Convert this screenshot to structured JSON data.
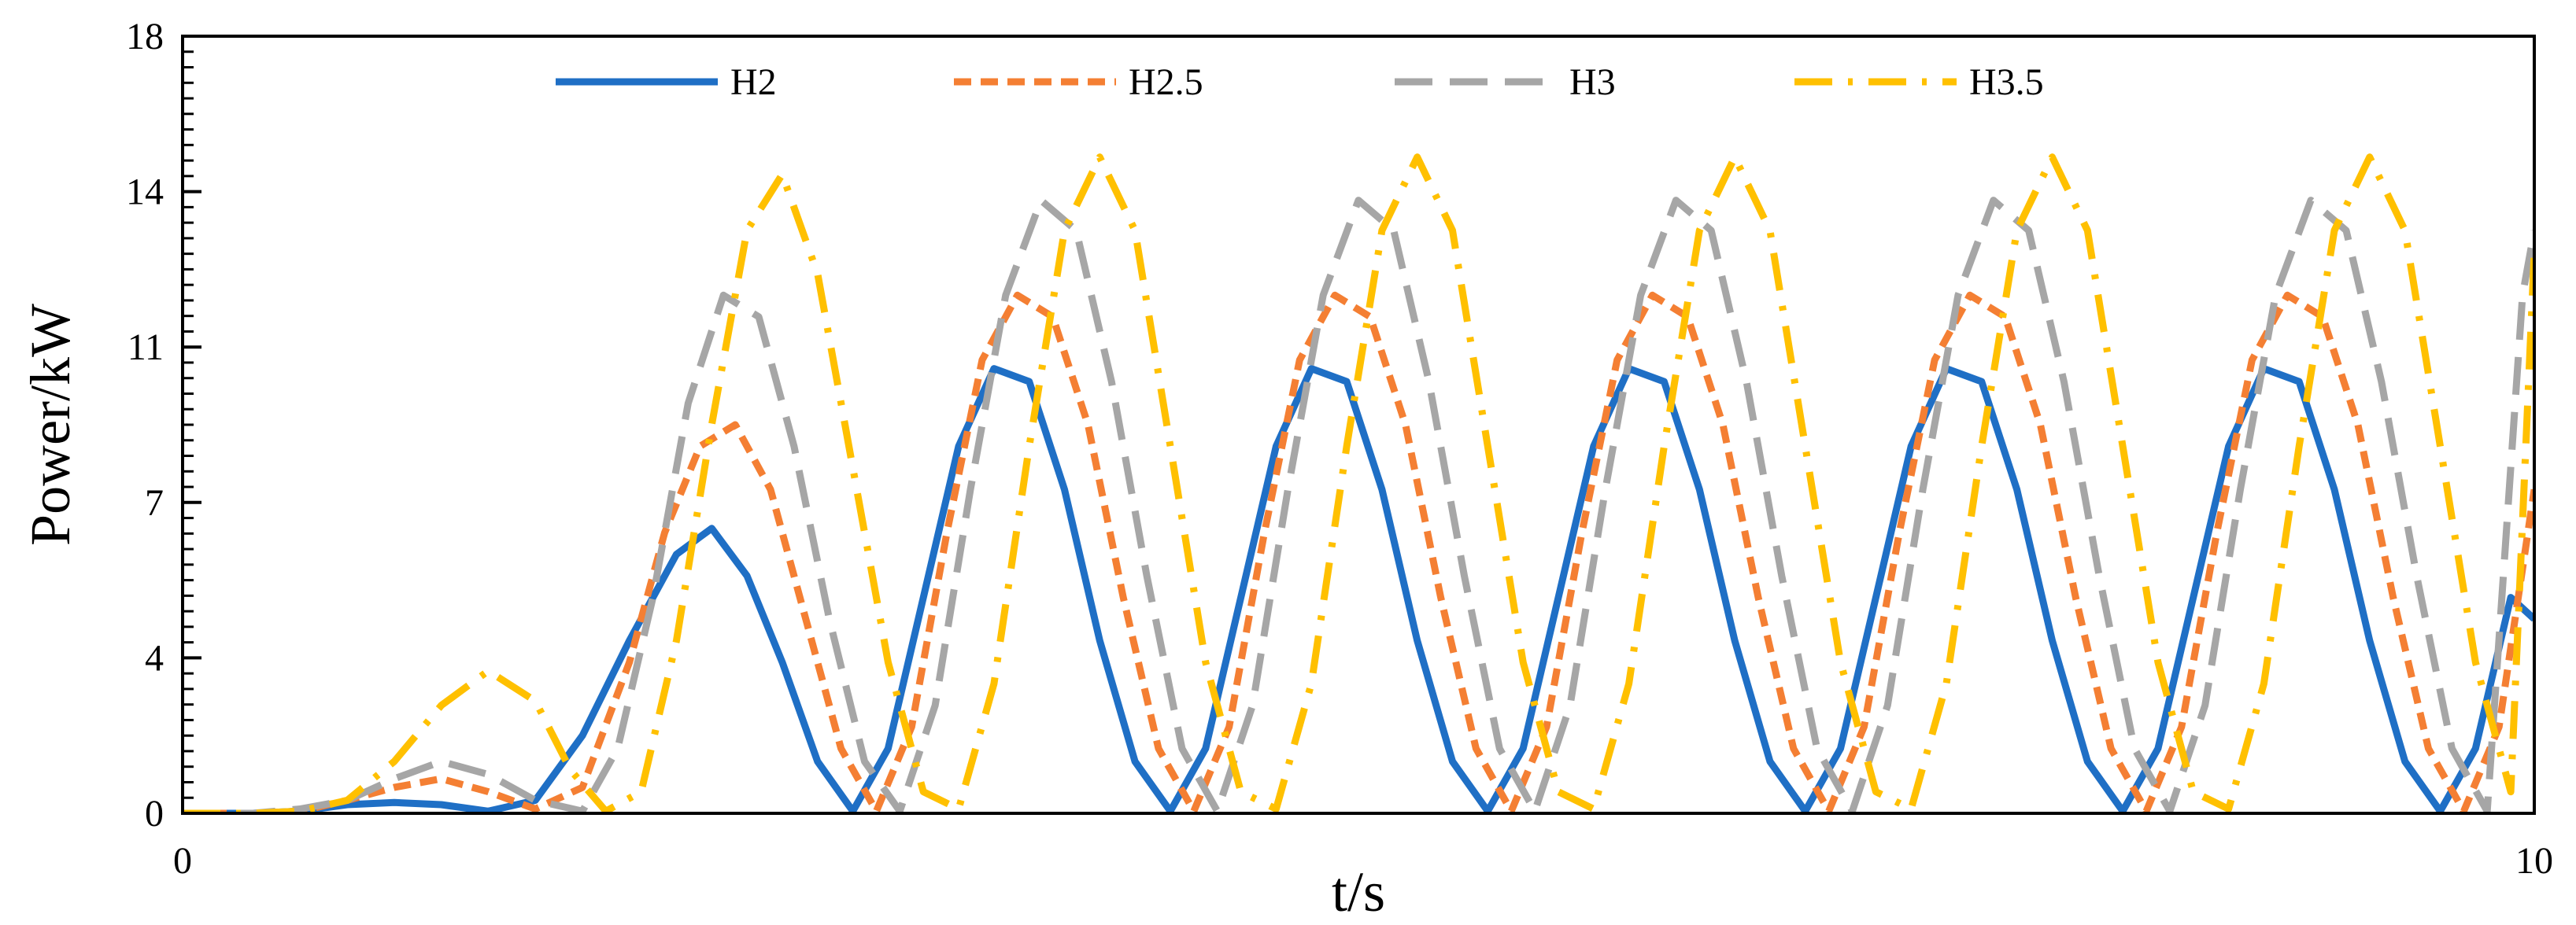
{
  "chart_data": {
    "type": "line",
    "title": "",
    "xlabel": "t/s",
    "ylabel": "Power/kW",
    "xlim": [
      0,
      10
    ],
    "ylim": [
      0,
      18
    ],
    "x_ticks": [
      {
        "value": 0,
        "label": "0"
      },
      {
        "value": 10,
        "label": "10"
      }
    ],
    "y_ticks": [
      {
        "value": 0,
        "label": "0"
      },
      {
        "value": 3.6,
        "label": "4"
      },
      {
        "value": 7.2,
        "label": "7"
      },
      {
        "value": 10.8,
        "label": "11"
      },
      {
        "value": 14.4,
        "label": "14"
      },
      {
        "value": 18,
        "label": "18"
      }
    ],
    "grid": false,
    "legend": "top",
    "series": [
      {
        "name": "H2",
        "color": "#1f6fc5",
        "dash": "solid",
        "x": [
          0,
          0.3,
          0.5,
          0.7,
          0.9,
          1.1,
          1.3,
          1.5,
          1.7,
          1.9,
          2.1,
          2.25,
          2.4,
          2.55,
          2.7,
          2.85,
          3.0,
          3.15,
          3.3,
          3.45,
          3.6,
          3.75,
          3.9,
          4.05,
          4.2,
          4.35,
          4.5,
          4.65,
          4.8,
          4.95,
          5.1,
          5.25,
          5.4,
          5.55,
          5.7,
          5.85,
          6.0,
          6.15,
          6.3,
          6.45,
          6.6,
          6.75,
          6.9,
          7.05,
          7.2,
          7.35,
          7.5,
          7.65,
          7.8,
          7.95,
          8.1,
          8.25,
          8.4,
          8.55,
          8.7,
          8.85,
          9.0,
          9.15,
          9.3,
          9.45,
          9.6,
          9.75,
          9.9,
          10.0
        ],
        "y": [
          0,
          0,
          0.05,
          0.2,
          0.25,
          0.2,
          0.05,
          0.3,
          1.8,
          4.0,
          6.0,
          6.6,
          5.5,
          3.5,
          1.2,
          0.05,
          1.5,
          5.0,
          8.5,
          10.3,
          10.0,
          7.5,
          4.0,
          1.2,
          0.05,
          1.5,
          5.0,
          8.5,
          10.3,
          10.0,
          7.5,
          4.0,
          1.2,
          0.05,
          1.5,
          5.0,
          8.5,
          10.3,
          10.0,
          7.5,
          4.0,
          1.2,
          0.05,
          1.5,
          5.0,
          8.5,
          10.3,
          10.0,
          7.5,
          4.0,
          1.2,
          0.05,
          1.5,
          5.0,
          8.5,
          10.3,
          10.0,
          7.5,
          4.0,
          1.2,
          0.05,
          1.5,
          5.0,
          4.5
        ]
      },
      {
        "name": "H2.5",
        "color": "#f47f33",
        "dash": "short-dash",
        "x": [
          0,
          0.3,
          0.5,
          0.7,
          0.9,
          1.1,
          1.3,
          1.5,
          1.7,
          1.9,
          2.05,
          2.2,
          2.35,
          2.5,
          2.65,
          2.8,
          2.95,
          3.1,
          3.25,
          3.4,
          3.55,
          3.7,
          3.85,
          4.0,
          4.15,
          4.3,
          4.45,
          4.6,
          4.75,
          4.9,
          5.05,
          5.2,
          5.35,
          5.5,
          5.65,
          5.8,
          5.95,
          6.1,
          6.25,
          6.4,
          6.55,
          6.7,
          6.85,
          7.0,
          7.15,
          7.3,
          7.45,
          7.6,
          7.75,
          7.9,
          8.05,
          8.2,
          8.35,
          8.5,
          8.65,
          8.8,
          8.95,
          9.1,
          9.25,
          9.4,
          9.55,
          9.7,
          9.85,
          10.0
        ],
        "y": [
          0,
          0,
          0.05,
          0.3,
          0.6,
          0.8,
          0.5,
          0.1,
          0.6,
          3.5,
          6.5,
          8.5,
          9.0,
          7.5,
          4.5,
          1.5,
          0.05,
          2.0,
          6.5,
          10.5,
          12.0,
          11.5,
          9.0,
          5.0,
          1.5,
          0.05,
          2.0,
          6.5,
          10.5,
          12.0,
          11.5,
          9.0,
          5.0,
          1.5,
          0.05,
          2.0,
          6.5,
          10.5,
          12.0,
          11.5,
          9.0,
          5.0,
          1.5,
          0.05,
          2.0,
          6.5,
          10.5,
          12.0,
          11.5,
          9.0,
          5.0,
          1.5,
          0.05,
          2.0,
          6.5,
          10.5,
          12.0,
          11.5,
          9.0,
          5.0,
          1.5,
          0.05,
          2.0,
          7.5
        ]
      },
      {
        "name": "H3",
        "color": "#a6a6a6",
        "dash": "long-dash",
        "x": [
          0,
          0.3,
          0.5,
          0.7,
          0.9,
          1.1,
          1.3,
          1.5,
          1.7,
          1.85,
          2.0,
          2.15,
          2.3,
          2.45,
          2.6,
          2.75,
          2.9,
          3.05,
          3.2,
          3.35,
          3.5,
          3.65,
          3.8,
          3.95,
          4.1,
          4.25,
          4.4,
          4.55,
          4.7,
          4.85,
          5.0,
          5.15,
          5.3,
          5.45,
          5.6,
          5.75,
          5.9,
          6.05,
          6.2,
          6.35,
          6.5,
          6.65,
          6.8,
          6.95,
          7.1,
          7.25,
          7.4,
          7.55,
          7.7,
          7.85,
          8.0,
          8.15,
          8.3,
          8.45,
          8.6,
          8.75,
          8.9,
          9.05,
          9.2,
          9.35,
          9.5,
          9.65,
          9.8,
          9.95,
          10.0
        ],
        "y": [
          0,
          0,
          0.1,
          0.3,
          0.8,
          1.2,
          0.9,
          0.3,
          0.05,
          1.5,
          5.0,
          9.5,
          12.0,
          11.5,
          8.5,
          4.5,
          1.2,
          0.05,
          2.5,
          7.5,
          12.0,
          14.2,
          13.5,
          10.0,
          5.5,
          1.5,
          0.05,
          2.5,
          7.5,
          12.0,
          14.2,
          13.5,
          10.0,
          5.5,
          1.5,
          0.05,
          2.5,
          7.5,
          12.0,
          14.2,
          13.5,
          10.0,
          5.5,
          1.5,
          0.05,
          2.5,
          7.5,
          12.0,
          14.2,
          13.5,
          10.0,
          5.5,
          1.5,
          0.05,
          2.5,
          7.5,
          12.0,
          14.2,
          13.5,
          10.0,
          5.5,
          1.5,
          0.05,
          12.0,
          13.5
        ]
      },
      {
        "name": "H3.5",
        "color": "#ffc000",
        "dash": "dash-dot",
        "x": [
          0,
          0.3,
          0.5,
          0.7,
          0.9,
          1.1,
          1.3,
          1.5,
          1.65,
          1.8,
          1.95,
          2.1,
          2.25,
          2.4,
          2.55,
          2.7,
          2.85,
          3.0,
          3.15,
          3.3,
          3.45,
          3.6,
          3.75,
          3.9,
          4.05,
          4.2,
          4.35,
          4.5,
          4.65,
          4.8,
          4.95,
          5.1,
          5.25,
          5.4,
          5.55,
          5.7,
          5.85,
          6.0,
          6.15,
          6.3,
          6.45,
          6.6,
          6.75,
          6.9,
          7.05,
          7.2,
          7.35,
          7.5,
          7.65,
          7.8,
          7.95,
          8.1,
          8.25,
          8.4,
          8.55,
          8.7,
          8.85,
          9.0,
          9.15,
          9.3,
          9.45,
          9.6,
          9.75,
          9.9,
          10.0
        ],
        "y": [
          0,
          0,
          0.05,
          0.3,
          1.2,
          2.5,
          3.3,
          2.6,
          1.0,
          0.05,
          0.5,
          4.0,
          9.0,
          13.5,
          14.8,
          12.5,
          8.0,
          3.5,
          0.5,
          0.1,
          3.0,
          8.5,
          13.5,
          15.2,
          13.5,
          8.5,
          3.5,
          0.5,
          0.1,
          3.0,
          8.5,
          13.5,
          15.2,
          13.5,
          8.5,
          3.5,
          0.5,
          0.1,
          3.0,
          8.5,
          13.5,
          15.2,
          13.5,
          8.5,
          3.5,
          0.5,
          0.1,
          3.0,
          8.5,
          13.5,
          15.2,
          13.5,
          8.5,
          3.5,
          0.5,
          0.1,
          3.0,
          8.5,
          13.5,
          15.2,
          13.5,
          8.5,
          3.5,
          0.5,
          13.0
        ]
      }
    ]
  }
}
